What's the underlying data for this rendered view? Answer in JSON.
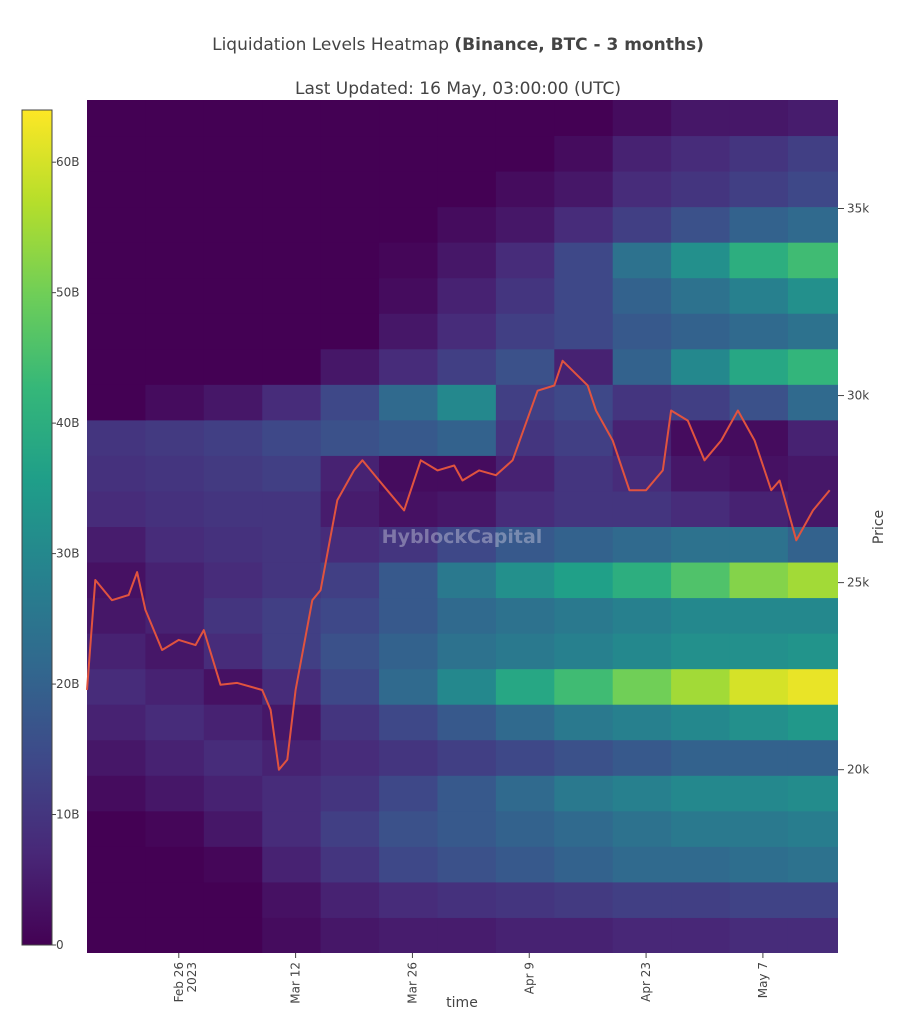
{
  "chart_data": {
    "type": "heatmap",
    "title": "Liquidation Levels Heatmap",
    "title_bold": "(Binance, BTC - 3 months)",
    "subtitle": "Last Updated: 16 May, 03:00:00 (UTC)",
    "watermark": "HyblockCapital",
    "x_label": "time",
    "y_label": "Price",
    "xlim": [
      "2023-02-15",
      "2023-05-16"
    ],
    "xticks": [
      {
        "value": "2023-02-26",
        "label": "Feb 26"
      },
      {
        "value": "2023-03-12",
        "label": "Mar 12"
      },
      {
        "value": "2023-03-26",
        "label": "Mar 26"
      },
      {
        "value": "2023-04-09",
        "label": "Apr 9"
      },
      {
        "value": "2023-04-23",
        "label": "Apr 23"
      },
      {
        "value": "2023-05-07",
        "label": "May 7"
      }
    ],
    "xtick_year_label": "2023",
    "ylim": [
      15100,
      37900
    ],
    "yticks": [
      {
        "value": 20000,
        "label": "20k"
      },
      {
        "value": 25000,
        "label": "25k"
      },
      {
        "value": 30000,
        "label": "30k"
      },
      {
        "value": 35000,
        "label": "35k"
      }
    ],
    "x_edges": [
      "2023-02-15",
      "2023-02-22",
      "2023-03-01",
      "2023-03-08",
      "2023-03-15",
      "2023-03-22",
      "2023-03-29",
      "2023-04-05",
      "2023-04-12",
      "2023-04-19",
      "2023-04-26",
      "2023-05-03",
      "2023-05-10",
      "2023-05-16"
    ],
    "y_edges": [
      15100,
      16050,
      17000,
      17950,
      18900,
      19850,
      20800,
      21750,
      22700,
      23650,
      24600,
      25550,
      26500,
      27450,
      28400,
      29350,
      30300,
      31250,
      32200,
      33150,
      34100,
      35050,
      36000,
      36950,
      37900
    ],
    "z": [
      [
        0,
        0,
        0,
        2,
        4,
        5,
        5,
        6,
        6,
        7,
        7,
        8,
        8
      ],
      [
        0,
        0,
        0,
        3,
        6,
        8,
        9,
        10,
        11,
        12,
        12,
        13,
        13
      ],
      [
        0,
        0,
        1,
        6,
        10,
        14,
        16,
        18,
        20,
        22,
        22,
        23,
        24
      ],
      [
        0,
        1,
        4,
        8,
        12,
        16,
        18,
        20,
        22,
        24,
        26,
        26,
        27
      ],
      [
        2,
        4,
        6,
        8,
        10,
        14,
        18,
        22,
        26,
        28,
        30,
        30,
        31
      ],
      [
        4,
        6,
        8,
        6,
        8,
        10,
        12,
        14,
        16,
        18,
        20,
        20,
        20
      ],
      [
        6,
        8,
        6,
        4,
        10,
        14,
        18,
        22,
        26,
        28,
        30,
        32,
        34
      ],
      [
        8,
        6,
        3,
        8,
        14,
        22,
        30,
        38,
        44,
        50,
        55,
        60,
        62
      ],
      [
        6,
        4,
        8,
        12,
        16,
        20,
        24,
        26,
        28,
        30,
        32,
        32,
        33
      ],
      [
        4,
        6,
        10,
        12,
        14,
        18,
        22,
        24,
        26,
        28,
        30,
        30,
        30
      ],
      [
        3,
        6,
        8,
        10,
        12,
        18,
        26,
        32,
        36,
        40,
        46,
        52,
        55
      ],
      [
        5,
        8,
        9,
        10,
        8,
        10,
        14,
        18,
        20,
        22,
        24,
        24,
        20
      ],
      [
        8,
        9,
        10,
        10,
        5,
        3,
        4,
        8,
        10,
        10,
        8,
        6,
        4
      ],
      [
        9,
        10,
        11,
        12,
        6,
        2,
        2,
        6,
        10,
        8,
        4,
        3,
        4
      ],
      [
        10,
        11,
        12,
        14,
        16,
        18,
        20,
        10,
        12,
        6,
        2,
        2,
        6
      ],
      [
        0,
        2,
        4,
        8,
        14,
        22,
        30,
        12,
        14,
        10,
        12,
        16,
        22
      ],
      [
        0,
        0,
        0,
        0,
        4,
        8,
        12,
        16,
        6,
        20,
        30,
        38,
        42
      ],
      [
        0,
        0,
        0,
        0,
        0,
        4,
        8,
        12,
        14,
        18,
        20,
        22,
        24
      ],
      [
        0,
        0,
        0,
        0,
        0,
        2,
        6,
        10,
        14,
        20,
        24,
        28,
        32
      ],
      [
        0,
        0,
        0,
        0,
        0,
        1,
        4,
        8,
        14,
        24,
        32,
        40,
        44
      ],
      [
        0,
        0,
        0,
        0,
        0,
        0,
        2,
        4,
        8,
        12,
        16,
        20,
        22
      ],
      [
        0,
        0,
        0,
        0,
        0,
        0,
        0,
        2,
        4,
        8,
        10,
        12,
        14
      ],
      [
        0,
        0,
        0,
        0,
        0,
        0,
        0,
        0,
        2,
        6,
        8,
        10,
        12
      ],
      [
        0,
        0,
        0,
        0,
        0,
        0,
        0,
        0,
        0,
        2,
        4,
        4,
        5
      ]
    ],
    "zlim": [
      0,
      64
    ],
    "zticks": [
      0,
      {
        "value": 10,
        "label": "10B"
      },
      {
        "value": 20,
        "label": "20B"
      },
      {
        "value": 30,
        "label": "30B"
      },
      {
        "value": 40,
        "label": "40B"
      },
      {
        "value": 50,
        "label": "50B"
      },
      {
        "value": 60,
        "label": "60B"
      }
    ],
    "colorscale": [
      "#440154",
      "#482878",
      "#3e4989",
      "#31688e",
      "#26828e",
      "#1f9e89",
      "#35b779",
      "#6ece58",
      "#b5de2b",
      "#fde725"
    ],
    "price_line": {
      "color": "#e0533f",
      "x": [
        "2023-02-15",
        "2023-02-16",
        "2023-02-18",
        "2023-02-20",
        "2023-02-21",
        "2023-02-22",
        "2023-02-24",
        "2023-02-26",
        "2023-02-28",
        "2023-03-01",
        "2023-03-03",
        "2023-03-05",
        "2023-03-08",
        "2023-03-09",
        "2023-03-10",
        "2023-03-11",
        "2023-03-12",
        "2023-03-14",
        "2023-03-15",
        "2023-03-17",
        "2023-03-19",
        "2023-03-20",
        "2023-03-22",
        "2023-03-24",
        "2023-03-25",
        "2023-03-27",
        "2023-03-29",
        "2023-03-31",
        "2023-04-01",
        "2023-04-03",
        "2023-04-05",
        "2023-04-07",
        "2023-04-10",
        "2023-04-12",
        "2023-04-13",
        "2023-04-16",
        "2023-04-17",
        "2023-04-19",
        "2023-04-21",
        "2023-04-23",
        "2023-04-25",
        "2023-04-26",
        "2023-04-28",
        "2023-04-30",
        "2023-05-02",
        "2023-05-04",
        "2023-05-06",
        "2023-05-08",
        "2023-05-09",
        "2023-05-11",
        "2023-05-13",
        "2023-05-15"
      ],
      "values": [
        22130,
        25070,
        24530,
        24670,
        25280,
        24270,
        23200,
        23470,
        23330,
        23730,
        22270,
        22320,
        22130,
        21600,
        20000,
        20270,
        22130,
        24530,
        24800,
        27200,
        28000,
        28270,
        27730,
        27200,
        26930,
        28270,
        28000,
        28130,
        27730,
        28000,
        27870,
        28270,
        30130,
        30270,
        30930,
        30270,
        29600,
        28800,
        27470,
        27470,
        28000,
        29600,
        29330,
        28270,
        28800,
        29600,
        28800,
        27470,
        27730,
        26130,
        26930,
        27470
      ]
    }
  }
}
